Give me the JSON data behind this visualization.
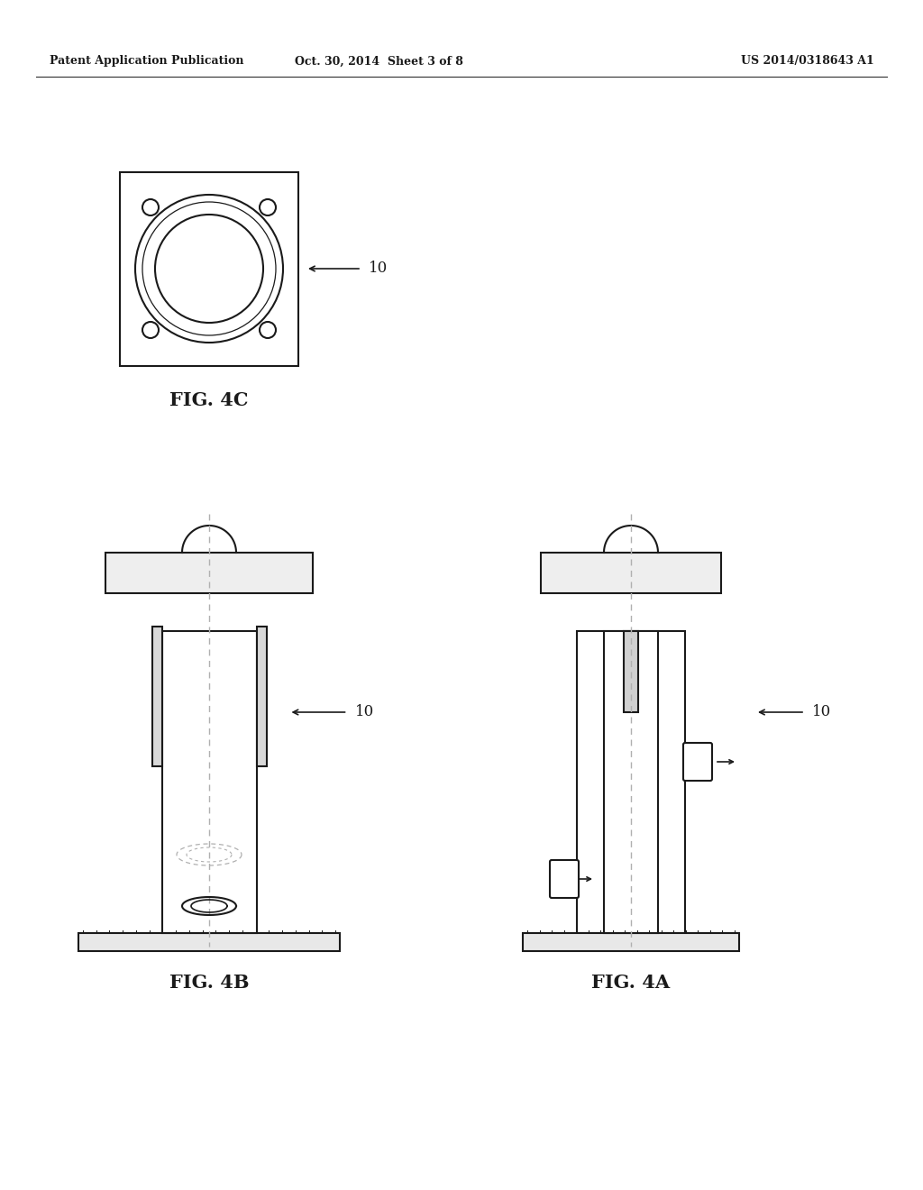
{
  "bg_color": "#ffffff",
  "line_color": "#1a1a1a",
  "dash_color": "#b0b0b0",
  "header_text_left": "Patent Application Publication",
  "header_text_mid": "Oct. 30, 2014  Sheet 3 of 8",
  "header_text_right": "US 2014/0318643 A1",
  "fig4c_label": "FIG. 4C",
  "fig4b_label": "FIG. 4B",
  "fig4a_label": "FIG. 4A",
  "ref_number": "10"
}
